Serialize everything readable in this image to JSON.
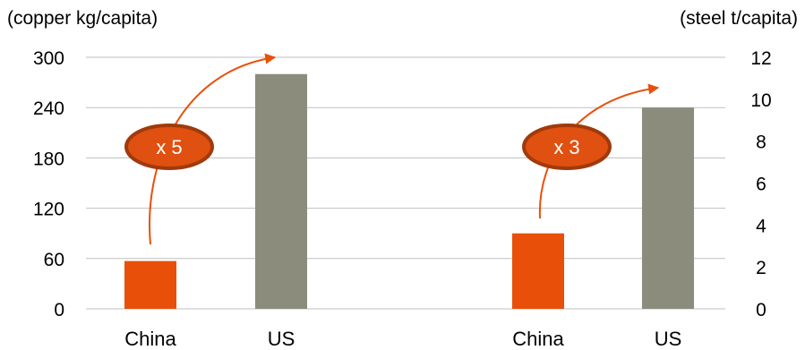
{
  "chart_data": {
    "type": "bar",
    "title": "",
    "groups": [
      {
        "measure": "copper",
        "axis": "left",
        "unit_label": "(copper kg/capita)",
        "categories": [
          "China",
          "US"
        ],
        "values": [
          57,
          280
        ],
        "multiplier_label": "x 5"
      },
      {
        "measure": "steel",
        "axis": "right",
        "unit_label": "(steel t/capita)",
        "categories": [
          "China",
          "US"
        ],
        "values": [
          3.6,
          9.6
        ],
        "multiplier_label": "x 3"
      }
    ],
    "left_axis": {
      "ylim": [
        0,
        300
      ],
      "ticks": [
        "0",
        "60",
        "120",
        "180",
        "240",
        "300"
      ]
    },
    "right_axis": {
      "ylim": [
        0,
        12
      ],
      "ticks": [
        "0",
        "2",
        "4",
        "6",
        "8",
        "10",
        "12"
      ]
    },
    "grid": true,
    "legend": "none",
    "colors": {
      "china": "#E8500A",
      "us": "#8C8C7D",
      "arrow": "#E8500A",
      "ellipse_fill": "#E05010",
      "ellipse_stroke": "#A03A0C",
      "grid": "#BFBFBF"
    }
  }
}
